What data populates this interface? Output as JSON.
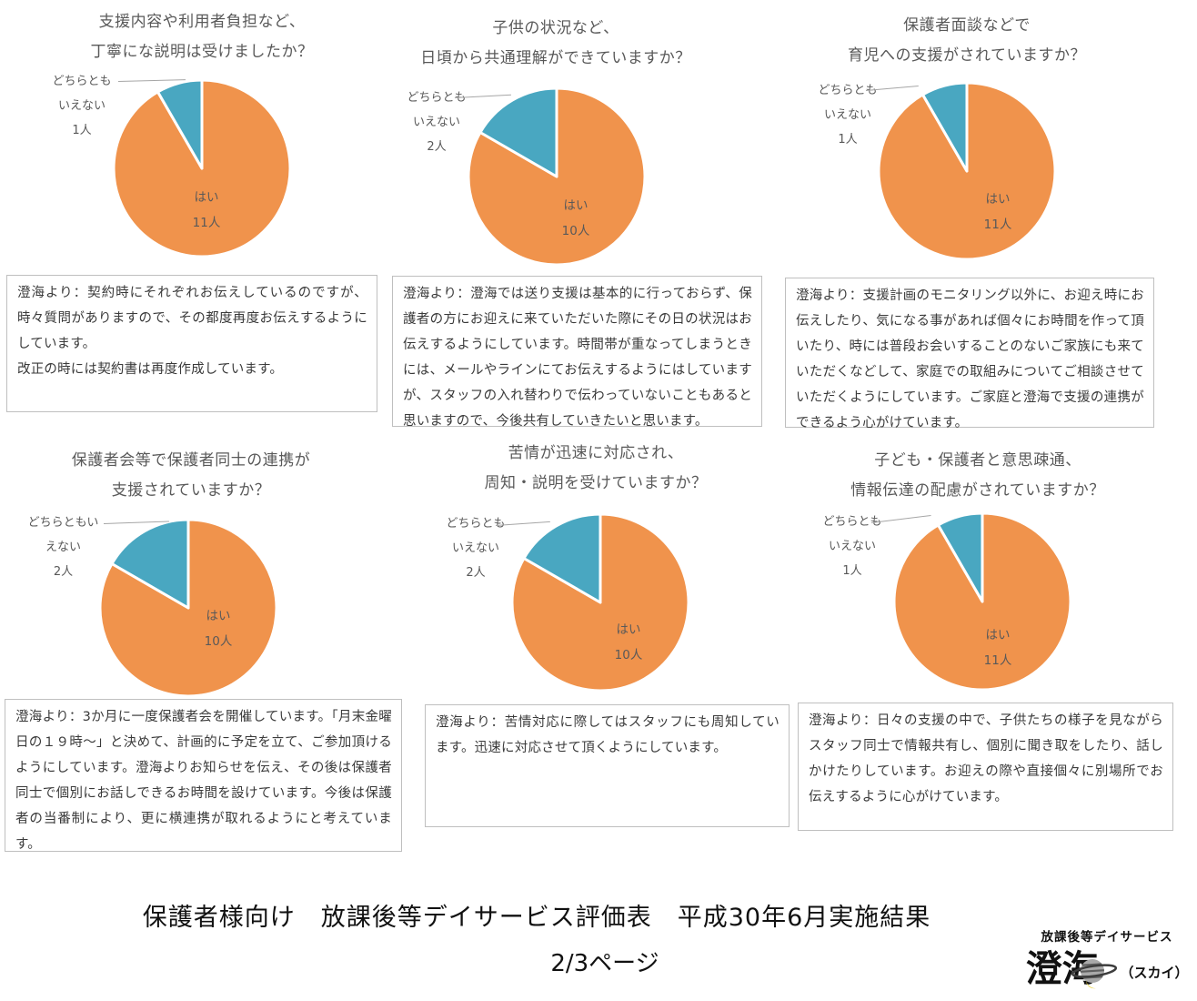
{
  "footer": {
    "title": "保護者様向け　放課後等デイサービス評価表　平成30年6月実施結果",
    "page_number": "2/3ページ"
  },
  "logo": {
    "tagline": "放課後等デイサービス",
    "name": "澄海",
    "reading": "（スカイ）"
  },
  "colors": {
    "yes": "#F0934C",
    "neither": "#49A7C1",
    "leader_line": "#A6A6A6",
    "box_border": "#BFBFBF",
    "title_text": "#595959"
  },
  "chart_data": [
    {
      "type": "pie",
      "title": "支援内容や利用者負担など、丁寧にな説明は受けましたか？",
      "title_lines": [
        "支援内容や利用者負担など、",
        "丁寧にな説明は受けましたか？"
      ],
      "labels": [
        "はい",
        "どちらともいえない"
      ],
      "values": [
        11,
        1
      ],
      "colors": [
        "#F0934C",
        "#49A7C1"
      ],
      "inside_label": [
        "はい",
        "11人"
      ],
      "outside_label": [
        "どちらとも",
        "いえない",
        "1人"
      ],
      "legend_position": "none",
      "comment": "澄海より：契約時にそれぞれお伝えしているのですが、時々質問がありますので、その都度再度お伝えするようにしています。\n改正の時には契約書は再度作成しています。"
    },
    {
      "type": "pie",
      "title": "子供の状況など、日頃から共通理解ができていますか？",
      "title_lines": [
        "子供の状況など、",
        "日頃から共通理解ができていますか？"
      ],
      "labels": [
        "はい",
        "どちらともいえない"
      ],
      "values": [
        10,
        2
      ],
      "colors": [
        "#F0934C",
        "#49A7C1"
      ],
      "inside_label": [
        "はい",
        "10人"
      ],
      "outside_label": [
        "どちらとも",
        "いえない",
        "2人"
      ],
      "legend_position": "none",
      "comment": "澄海より：澄海では送り支援は基本的に行っておらず、保護者の方にお迎えに来ていただいた際にその日の状況はお伝えするようにしています。時間帯が重なってしまうときには、メールやラインにてお伝えするようにはしていますが、スタッフの入れ替わりで伝わっていないこともあると思いますので、今後共有していきたいと思います。"
    },
    {
      "type": "pie",
      "title": "保護者面談などで育児への支援がされていますか？",
      "title_lines": [
        "保護者面談などで",
        "育児への支援がされていますか？"
      ],
      "labels": [
        "はい",
        "どちらともいえない"
      ],
      "values": [
        11,
        1
      ],
      "colors": [
        "#F0934C",
        "#49A7C1"
      ],
      "inside_label": [
        "はい",
        "11人"
      ],
      "outside_label": [
        "どちらとも",
        "いえない",
        "1人"
      ],
      "legend_position": "none",
      "comment": "澄海より：支援計画のモニタリング以外に、お迎え時にお伝えしたり、気になる事があれば個々にお時間を作って頂いたり、時には普段お会いすることのないご家族にも来ていただくなどして、家庭での取組みについてご相談させていただくようにしています。ご家庭と澄海で支援の連携ができるよう心がけています。"
    },
    {
      "type": "pie",
      "title": "保護者会等で保護者同士の連携が支援されていますか？",
      "title_lines": [
        "保護者会等で保護者同士の連携が",
        "支援されていますか？"
      ],
      "labels": [
        "はい",
        "どちらともいえない"
      ],
      "values": [
        10,
        2
      ],
      "colors": [
        "#F0934C",
        "#49A7C1"
      ],
      "inside_label": [
        "はい",
        "10人"
      ],
      "outside_label": [
        "どちらともい",
        "えない",
        "2人"
      ],
      "legend_position": "none",
      "comment": "澄海より：3か月に一度保護者会を開催しています。「月末金曜日の１９時～」と決めて、計画的に予定を立て、ご参加頂けるようにしています。澄海よりお知らせを伝え、その後は保護者同士で個別にお話しできるお時間を設けています。今後は保護者の当番制により、更に横連携が取れるようにと考えています。"
    },
    {
      "type": "pie",
      "title": "苦情が迅速に対応され、周知・説明を受けていますか？",
      "title_lines": [
        "苦情が迅速に対応され、",
        "周知・説明を受けていますか？"
      ],
      "labels": [
        "はい",
        "どちらともいえない"
      ],
      "values": [
        10,
        2
      ],
      "colors": [
        "#F0934C",
        "#49A7C1"
      ],
      "inside_label": [
        "はい",
        "10人"
      ],
      "outside_label": [
        "どちらとも",
        "いえない",
        "2人"
      ],
      "legend_position": "none",
      "comment": "澄海より：苦情対応に際してはスタッフにも周知しています。迅速に対応させて頂くようにしています。"
    },
    {
      "type": "pie",
      "title": "子ども・保護者と意思疎通、情報伝達の配慮がされていますか？",
      "title_lines": [
        "子ども・保護者と意思疎通、",
        "情報伝達の配慮がされていますか？"
      ],
      "labels": [
        "はい",
        "どちらともいえない"
      ],
      "values": [
        11,
        1
      ],
      "colors": [
        "#F0934C",
        "#49A7C1"
      ],
      "inside_label": [
        "はい",
        "11人"
      ],
      "outside_label": [
        "どちらとも",
        "いえない",
        "1人"
      ],
      "legend_position": "none",
      "comment": "澄海より：日々の支援の中で、子供たちの様子を見ながらスタッフ同士で情報共有し、個別に聞き取をしたり、話しかけたりしています。お迎えの際や直接個々に別場所でお伝えするように心がけています。"
    }
  ]
}
